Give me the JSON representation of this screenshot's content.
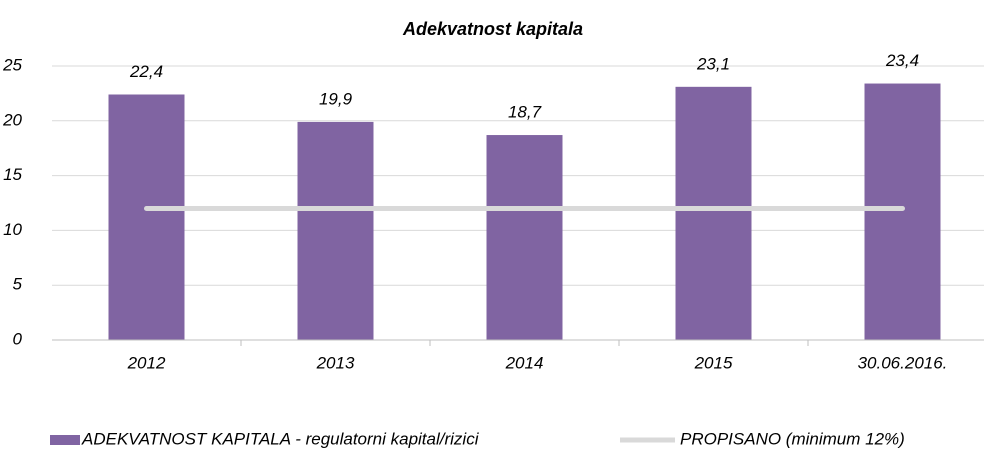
{
  "chart_data": {
    "type": "bar",
    "title": "Adekvatnost kapitala",
    "categories": [
      "2012",
      "2013",
      "2014",
      "2015",
      "30.06.2016."
    ],
    "series": [
      {
        "name": "ADEKVATNOST KAPITALA - regulatorni kapital/rizici",
        "type": "bar",
        "color": "#8064a2",
        "values": [
          22.4,
          19.9,
          18.7,
          23.1,
          23.4
        ],
        "value_labels": [
          "22,4",
          "19,9",
          "18,7",
          "23,1",
          "23,4"
        ]
      },
      {
        "name": "PROPISANO (minimum 12%)",
        "type": "line",
        "color": "#d9d9d9",
        "values": [
          12,
          12,
          12,
          12,
          12
        ]
      }
    ],
    "ylim": [
      0,
      25
    ],
    "yticks": [
      0,
      5,
      10,
      15,
      20,
      25
    ],
    "grid": true,
    "legend": "bottom"
  }
}
